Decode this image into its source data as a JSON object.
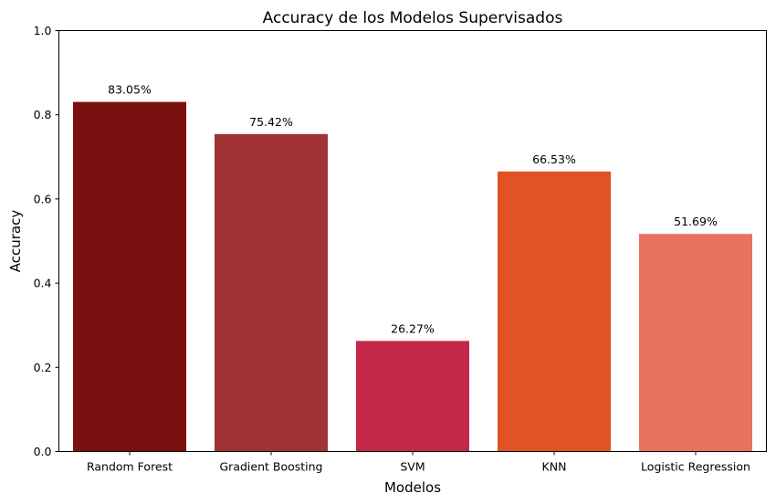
{
  "chart_data": {
    "type": "bar",
    "title": "Accuracy de los Modelos Supervisados",
    "xlabel": "Modelos",
    "ylabel": "Accuracy",
    "categories": [
      "Random Forest",
      "Gradient Boosting",
      "SVM",
      "KNN",
      "Logistic Regression"
    ],
    "values": [
      0.8305,
      0.7542,
      0.2627,
      0.6653,
      0.5169
    ],
    "data_labels": [
      "83.05%",
      "75.42%",
      "26.27%",
      "66.53%",
      "51.69%"
    ],
    "colors": [
      "#7a1010",
      "#a03335",
      "#c4294a",
      "#e05423",
      "#e87360"
    ],
    "ylim": [
      0,
      1.0
    ],
    "yticks": [
      0.0,
      0.2,
      0.4,
      0.6,
      0.8,
      1.0
    ],
    "ytick_labels": [
      "0.0",
      "0.2",
      "0.4",
      "0.6",
      "0.8",
      "1.0"
    ],
    "grid": false,
    "legend": "none"
  }
}
